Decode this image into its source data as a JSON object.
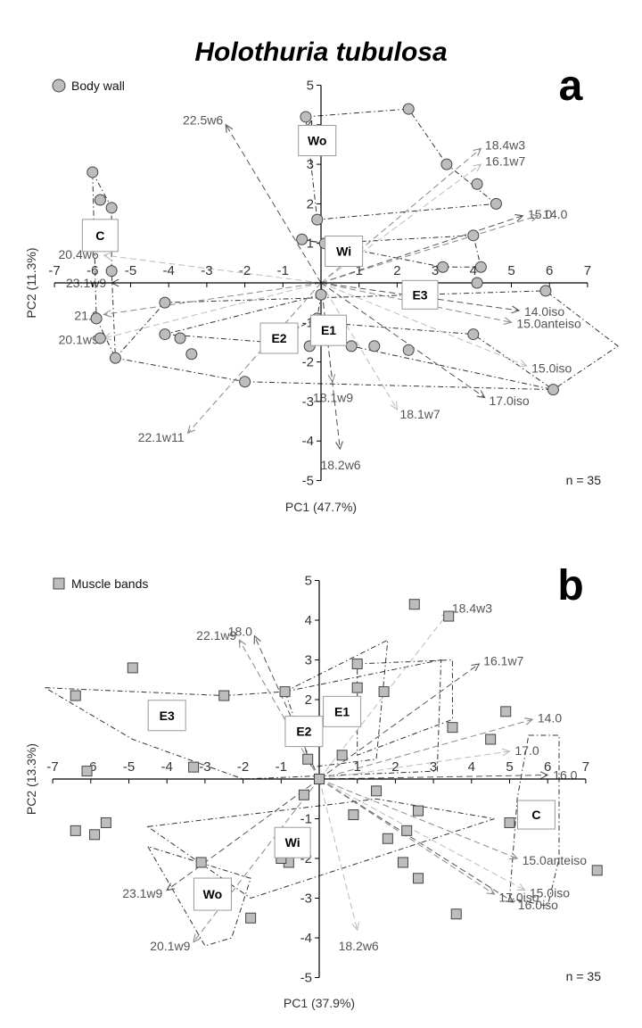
{
  "title": "Holothuria tubulosa",
  "chart_data": [
    {
      "type": "scatter",
      "panel": "a",
      "legend": "Body wall",
      "marker": "circle",
      "xlabel": "PC1 (47.7%)",
      "ylabel": "PC2 (11.3%)",
      "xlim": [
        -7,
        7
      ],
      "ylim": [
        -5,
        5
      ],
      "xticks": [
        "-7",
        "-6",
        "-5",
        "-4",
        "-3",
        "-2",
        "-1",
        "1",
        "2",
        "3",
        "4",
        "5",
        "6",
        "7"
      ],
      "yticks": [
        "-5",
        "-4",
        "-3",
        "-2",
        "-1",
        "1",
        "2",
        "3",
        "4",
        "5"
      ],
      "n_label": "n = 35",
      "points": [
        [
          -0.4,
          4.2
        ],
        [
          2.3,
          4.4
        ],
        [
          3.3,
          3.0
        ],
        [
          4.1,
          2.5
        ],
        [
          4.6,
          2.0
        ],
        [
          -0.1,
          1.6
        ],
        [
          0.1,
          1.0
        ],
        [
          -0.5,
          1.1
        ],
        [
          4.0,
          1.2
        ],
        [
          4.2,
          0.4
        ],
        [
          3.2,
          0.4
        ],
        [
          5.9,
          -0.2
        ],
        [
          4.0,
          -1.3
        ],
        [
          0.0,
          -0.3
        ],
        [
          0.0,
          -1.0
        ],
        [
          0.8,
          -1.6
        ],
        [
          1.4,
          -1.6
        ],
        [
          2.3,
          -1.7
        ],
        [
          -0.3,
          -1.6
        ],
        [
          -1.4,
          -1.5
        ],
        [
          -3.7,
          -1.4
        ],
        [
          -4.1,
          -0.5
        ],
        [
          -4.1,
          -1.3
        ],
        [
          -5.4,
          -1.9
        ],
        [
          -5.8,
          -1.4
        ],
        [
          -5.9,
          -0.9
        ],
        [
          -5.5,
          0.3
        ],
        [
          -5.8,
          2.1
        ],
        [
          -5.5,
          1.9
        ],
        [
          -6.0,
          2.8
        ],
        [
          -2.0,
          -2.5
        ],
        [
          6.1,
          -2.7
        ],
        [
          -0.1,
          -0.9
        ],
        [
          -3.4,
          -1.8
        ],
        [
          4.1,
          0.0
        ]
      ],
      "vectors": [
        {
          "label": "22.5w6",
          "x": -2.5,
          "y": 4.0
        },
        {
          "label": "18.4w3",
          "x": 4.2,
          "y": 3.4
        },
        {
          "label": "16.1w7",
          "x": 4.2,
          "y": 3.0
        },
        {
          "label": "15.0",
          "x": 5.3,
          "y": 1.7
        },
        {
          "label": "14.0",
          "x": 5.7,
          "y": 1.7
        },
        {
          "label": "20.4w6",
          "x": -5.7,
          "y": 0.7
        },
        {
          "label": "23.1w9",
          "x": -5.5,
          "y": 0.0
        },
        {
          "label": "21.0",
          "x": -5.7,
          "y": -0.8
        },
        {
          "label": "20.1w9",
          "x": -5.7,
          "y": -1.4
        },
        {
          "label": "14.0iso",
          "x": 5.2,
          "y": -0.7
        },
        {
          "label": "15.0anteiso",
          "x": 5.0,
          "y": -1.0
        },
        {
          "label": "15.0iso",
          "x": 5.4,
          "y": -2.1
        },
        {
          "label": "17.0iso",
          "x": 4.3,
          "y": -2.9
        },
        {
          "label": "18.1w9",
          "x": 0.3,
          "y": -2.5
        },
        {
          "label": "18.1w7",
          "x": 2.0,
          "y": -3.2
        },
        {
          "label": "18.2w6",
          "x": 0.5,
          "y": -4.2
        },
        {
          "label": "22.1w11",
          "x": -3.5,
          "y": -3.8
        }
      ],
      "groups": [
        "Wo",
        "Wi",
        "C",
        "E3",
        "E2",
        "E1"
      ]
    },
    {
      "type": "scatter",
      "panel": "b",
      "legend": "Muscle bands",
      "marker": "square",
      "xlabel": "PC1 (37.9%)",
      "ylabel": "PC2 (13.3%)",
      "xlim": [
        -7,
        7
      ],
      "ylim": [
        -5,
        5
      ],
      "xticks": [
        "-7",
        "-6",
        "-5",
        "-4",
        "-3",
        "-2",
        "-1",
        "1",
        "2",
        "3",
        "4",
        "5",
        "6",
        "7"
      ],
      "yticks": [
        "-5",
        "-4",
        "-3",
        "-2",
        "-1",
        "1",
        "2",
        "3",
        "4",
        "5"
      ],
      "n_label": "n = 35",
      "points": [
        [
          2.5,
          4.4
        ],
        [
          3.4,
          4.1
        ],
        [
          1.0,
          2.9
        ],
        [
          1.0,
          2.3
        ],
        [
          1.7,
          2.2
        ],
        [
          -0.9,
          2.2
        ],
        [
          -2.5,
          2.1
        ],
        [
          -4.9,
          2.8
        ],
        [
          -6.4,
          2.1
        ],
        [
          -6.1,
          0.2
        ],
        [
          -3.3,
          0.3
        ],
        [
          4.9,
          1.7
        ],
        [
          3.5,
          1.3
        ],
        [
          4.5,
          1.0
        ],
        [
          -0.3,
          0.5
        ],
        [
          0.6,
          0.6
        ],
        [
          0.0,
          0.0
        ],
        [
          1.5,
          -0.3
        ],
        [
          2.6,
          -0.8
        ],
        [
          0.9,
          -0.9
        ],
        [
          2.3,
          -1.3
        ],
        [
          1.8,
          -1.5
        ],
        [
          2.2,
          -2.1
        ],
        [
          2.6,
          -2.5
        ],
        [
          3.6,
          -3.4
        ],
        [
          5.0,
          -1.1
        ],
        [
          7.3,
          -2.3
        ],
        [
          -0.8,
          -2.1
        ],
        [
          -1.0,
          -2.0
        ],
        [
          -3.1,
          -2.1
        ],
        [
          -1.8,
          -3.5
        ],
        [
          -5.9,
          -1.4
        ],
        [
          -6.4,
          -1.3
        ],
        [
          -5.6,
          -1.1
        ],
        [
          -0.4,
          -0.4
        ]
      ],
      "vectors": [
        {
          "label": "18.0",
          "x": -1.7,
          "y": 3.6
        },
        {
          "label": "22.1w9",
          "x": -2.1,
          "y": 3.5
        },
        {
          "label": "18.4w3",
          "x": 3.4,
          "y": 4.2
        },
        {
          "label": "16.1w7",
          "x": 4.2,
          "y": 2.9
        },
        {
          "label": "14.0",
          "x": 5.6,
          "y": 1.5
        },
        {
          "label": "17.0",
          "x": 5.0,
          "y": 0.7
        },
        {
          "label": "16.0",
          "x": 6.0,
          "y": 0.1
        },
        {
          "label": "15.0anteiso",
          "x": 5.2,
          "y": -2.0
        },
        {
          "label": "15.0iso",
          "x": 5.4,
          "y": -2.8
        },
        {
          "label": "16.0iso",
          "x": 5.1,
          "y": -3.1
        },
        {
          "label": "17.0iso",
          "x": 4.6,
          "y": -2.9
        },
        {
          "label": "18.2w6",
          "x": 1.0,
          "y": -3.8
        },
        {
          "label": "23.1w9",
          "x": -4.0,
          "y": -2.8
        },
        {
          "label": "20.1w9",
          "x": -3.3,
          "y": -4.1
        }
      ],
      "groups": [
        "E3",
        "E2",
        "E1",
        "C",
        "Wi",
        "Wo"
      ]
    }
  ]
}
